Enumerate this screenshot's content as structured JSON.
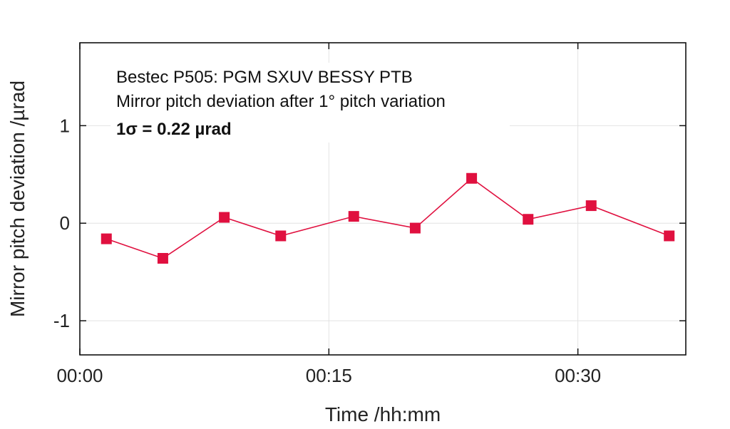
{
  "chart_data": {
    "type": "line",
    "xlabel": "Time /hh:mm",
    "ylabel": "Mirror pitch deviation /µrad",
    "annotations": [
      "Bestec P505: PGM SXUV BESSY PTB",
      "Mirror pitch deviation after 1° pitch variation",
      "1σ = 0.22 µrad"
    ],
    "xlim_minutes": [
      0,
      36.5
    ],
    "ylim": [
      -1.35,
      1.85
    ],
    "x_ticks": [
      {
        "value": 0,
        "label": "00:00"
      },
      {
        "value": 15,
        "label": "00:15"
      },
      {
        "value": 30,
        "label": "00:30"
      }
    ],
    "y_ticks": [
      {
        "value": 1,
        "label": "1"
      },
      {
        "value": 0,
        "label": "0"
      },
      {
        "value": -1,
        "label": "-1"
      }
    ],
    "grid": true,
    "series": [
      {
        "color": "#e0103f",
        "marker": "square",
        "x_minutes": [
          1.6,
          5.0,
          8.7,
          12.1,
          16.5,
          20.2,
          23.6,
          27.0,
          30.8,
          35.5
        ],
        "values": [
          -0.16,
          -0.36,
          0.06,
          -0.13,
          0.07,
          -0.05,
          0.46,
          0.04,
          0.18,
          -0.13
        ]
      }
    ]
  }
}
